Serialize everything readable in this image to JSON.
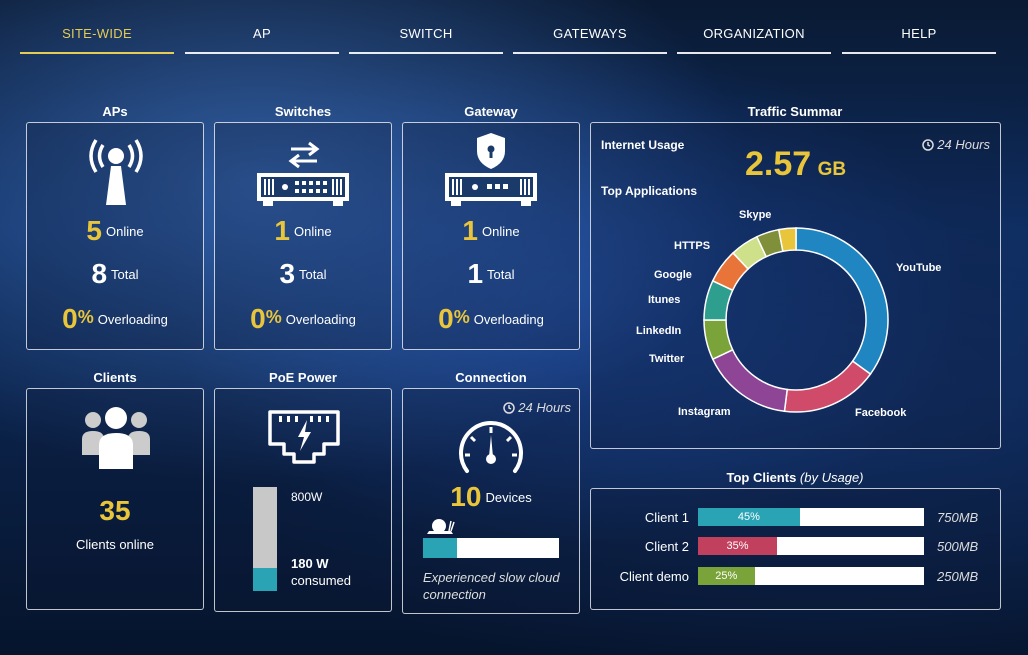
{
  "nav": {
    "items": [
      "SITE-WIDE",
      "AP",
      "SWITCH",
      "GATEWAYS",
      "ORGANIZATION",
      "HELP"
    ],
    "active": "SITE-WIDE"
  },
  "aps": {
    "title": "APs",
    "online": "5",
    "online_label": "Online",
    "total": "8",
    "total_label": "Total",
    "overload": "0",
    "overload_unit": "%",
    "overload_label": "Overloading"
  },
  "switches": {
    "title": "Switches",
    "online": "1",
    "online_label": "Online",
    "total": "3",
    "total_label": "Total",
    "overload": "0",
    "overload_unit": "%",
    "overload_label": "Overloading"
  },
  "gateway": {
    "title": "Gateway",
    "online": "1",
    "online_label": "Online",
    "total": "1",
    "total_label": "Total",
    "overload": "0",
    "overload_unit": "%",
    "overload_label": "Overloading"
  },
  "traffic": {
    "title": "Traffic Summar",
    "internet_usage_label": "Internet Usage",
    "hours": "24 Hours",
    "usage_value": "2.57",
    "usage_unit": "GB",
    "top_apps_label": "Top Applications",
    "apps": [
      {
        "name": "YouTube",
        "color": "#1f86c2",
        "share": 35
      },
      {
        "name": "Facebook",
        "color": "#d04a6a",
        "share": 17
      },
      {
        "name": "Instagram",
        "color": "#8e4595",
        "share": 16
      },
      {
        "name": "Twitter",
        "color": "#7aa33a",
        "share": 7
      },
      {
        "name": "LinkedIn",
        "color": "#2e9f8e",
        "share": 7
      },
      {
        "name": "Itunes",
        "color": "#e8743a",
        "share": 6
      },
      {
        "name": "Google",
        "color": "#cfe08a",
        "share": 5
      },
      {
        "name": "HTTPS",
        "color": "#7f8f3a",
        "share": 4
      },
      {
        "name": "Skype",
        "color": "#e8c53a",
        "share": 3
      }
    ]
  },
  "clients": {
    "title": "Clients",
    "count": "35",
    "label": "Clients online"
  },
  "poe": {
    "title": "PoE Power",
    "total": "800W",
    "consumed_value": "180 W",
    "consumed_label": "consumed",
    "fraction": 0.225
  },
  "connection": {
    "title": "Connection",
    "hours": "24 Hours",
    "devices": "10",
    "devices_label": "Devices",
    "slow_fraction": 0.25,
    "note_line1": "Experienced slow cloud",
    "note_line2": "connection"
  },
  "top_clients": {
    "title": "Top Clients",
    "subtitle": "(by Usage)",
    "rows": [
      {
        "name": "Client 1",
        "percent": "45%",
        "fraction": 0.45,
        "color": "#2aa3b5",
        "usage": "750MB"
      },
      {
        "name": "Client 2",
        "percent": "35%",
        "fraction": 0.35,
        "color": "#c0405e",
        "usage": "500MB"
      },
      {
        "name": "Client demo",
        "percent": "25%",
        "fraction": 0.25,
        "color": "#7aa33a",
        "usage": "250MB"
      }
    ]
  }
}
